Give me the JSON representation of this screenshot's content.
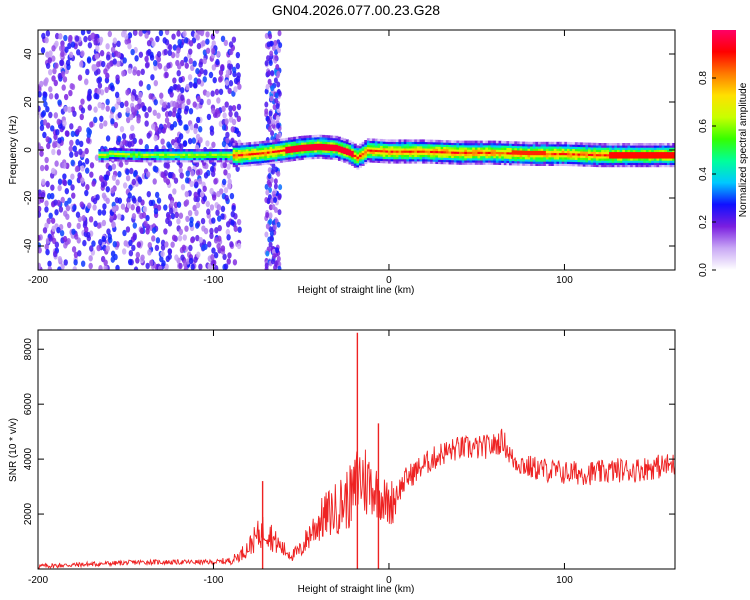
{
  "title": "GN04.2026.077.00.23.G28",
  "chart_data": [
    {
      "type": "heatmap",
      "xlabel": "Height of straight line (km)",
      "ylabel": "Frequency (Hz)",
      "xlim": [
        -200,
        163
      ],
      "ylim": [
        -50,
        50
      ],
      "xticks": [
        "-200",
        "-100",
        "0",
        "100"
      ],
      "yticks": [
        "-40",
        "-20",
        "0",
        "20",
        "40"
      ],
      "colorbar": {
        "label": "Normalized spectral amplitude",
        "range": [
          0,
          1
        ],
        "ticks": [
          "0.0",
          "0.2",
          "0.4",
          "0.6",
          "0.8"
        ],
        "colors": [
          "#ffffff",
          "#c9a8f5",
          "#7a1ee0",
          "#1010ff",
          "#00c8ff",
          "#00ff9a",
          "#35ff00",
          "#c8ff00",
          "#ffe000",
          "#ff7a00",
          "#ff0000",
          "#ff0066"
        ]
      },
      "ridge": [
        {
          "x": -160,
          "y": -1.5
        },
        {
          "x": -140,
          "y": -2
        },
        {
          "x": -120,
          "y": -2
        },
        {
          "x": -100,
          "y": -2
        },
        {
          "x": -85,
          "y": -2
        },
        {
          "x": -70,
          "y": -1
        },
        {
          "x": -60,
          "y": 0
        },
        {
          "x": -50,
          "y": 1
        },
        {
          "x": -40,
          "y": 1.5
        },
        {
          "x": -30,
          "y": 1
        },
        {
          "x": -22,
          "y": -1
        },
        {
          "x": -18,
          "y": -3
        },
        {
          "x": -12,
          "y": 0
        },
        {
          "x": 0,
          "y": -0.5
        },
        {
          "x": 20,
          "y": -0.5
        },
        {
          "x": 40,
          "y": -1
        },
        {
          "x": 60,
          "y": -1
        },
        {
          "x": 80,
          "y": -1.5
        },
        {
          "x": 100,
          "y": -1.5
        },
        {
          "x": 120,
          "y": -2
        },
        {
          "x": 140,
          "y": -2
        },
        {
          "x": 163,
          "y": -2
        }
      ]
    },
    {
      "type": "line",
      "xlabel": "Height of straight line (km)",
      "ylabel": "SNR (10 * v/v)",
      "xlim": [
        -200,
        163
      ],
      "ylim": [
        0,
        8700
      ],
      "xticks": [
        "-200",
        "-100",
        "0",
        "100"
      ],
      "yticks": [
        "2000",
        "4000",
        "6000",
        "8000"
      ],
      "color": "#ee2222",
      "series": [
        {
          "x": [
            -200,
            -180,
            -160,
            -140,
            -120,
            -100,
            -90,
            -85,
            -80,
            -75,
            -70,
            -65,
            -60,
            -55,
            -50,
            -45,
            -40,
            -35,
            -30,
            -25,
            -20,
            -18,
            -15,
            -10,
            -5,
            0,
            5,
            10,
            20,
            30,
            40,
            50,
            60,
            65,
            70,
            80,
            90,
            100,
            110,
            120,
            130,
            140,
            150,
            163
          ],
          "y": [
            100,
            150,
            200,
            250,
            250,
            250,
            300,
            500,
            800,
            1200,
            1500,
            1000,
            700,
            500,
            700,
            1300,
            1700,
            2000,
            2200,
            2500,
            2700,
            3300,
            3300,
            3000,
            2700,
            2300,
            2800,
            3300,
            3800,
            4200,
            4400,
            4400,
            4500,
            4700,
            4000,
            3700,
            3600,
            3500,
            3500,
            3500,
            3600,
            3600,
            3700,
            3800
          ]
        }
      ],
      "annotations": [
        {
          "x": -72,
          "y": 3200
        },
        {
          "x": -18,
          "y": 8600
        },
        {
          "x": -6,
          "y": 5300
        }
      ]
    }
  ]
}
